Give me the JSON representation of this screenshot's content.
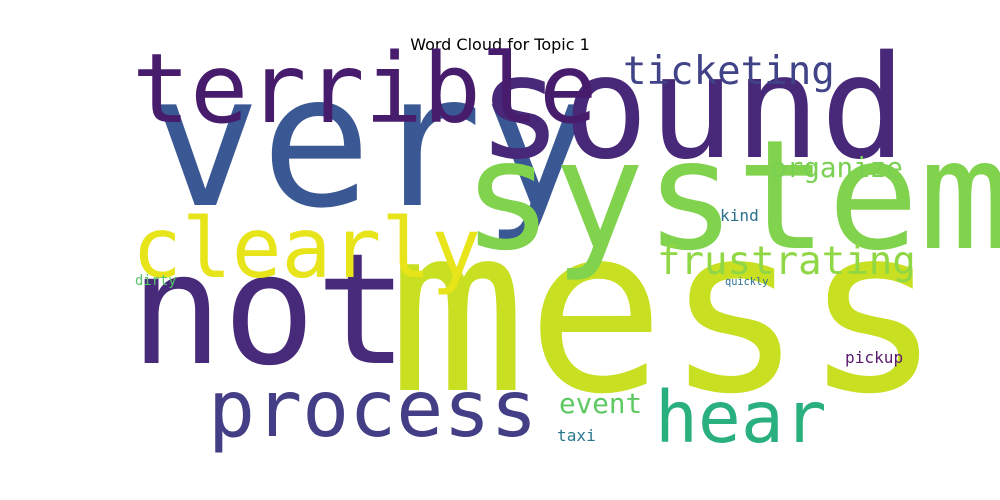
{
  "chart_data": {
    "type": "wordcloud",
    "title": "Word Cloud for Topic 1",
    "words": [
      {
        "text": "mess",
        "weight": 1.0,
        "color": "#c8df22"
      },
      {
        "text": "very",
        "weight": 0.8,
        "color": "#3a5893"
      },
      {
        "text": "sound",
        "weight": 0.62,
        "color": "#482878"
      },
      {
        "text": "system",
        "weight": 0.66,
        "color": "#81d34d"
      },
      {
        "text": "not",
        "weight": 0.67,
        "color": "#472a7a"
      },
      {
        "text": "terrible",
        "weight": 0.42,
        "color": "#471c6d"
      },
      {
        "text": "clearly",
        "weight": 0.36,
        "color": "#e7e419"
      },
      {
        "text": "process",
        "weight": 0.34,
        "color": "#433e85"
      },
      {
        "text": "hear",
        "weight": 0.31,
        "color": "#2ab07f"
      },
      {
        "text": "ticketing",
        "weight": 0.17,
        "color": "#404387"
      },
      {
        "text": "frustrating",
        "weight": 0.17,
        "color": "#8fd744"
      },
      {
        "text": "organize",
        "weight": 0.12,
        "color": "#7ad151"
      },
      {
        "text": "event",
        "weight": 0.12,
        "color": "#5ec962"
      },
      {
        "text": "kind",
        "weight": 0.07,
        "color": "#2c728e"
      },
      {
        "text": "pickup",
        "weight": 0.07,
        "color": "#5b1a6e"
      },
      {
        "text": "taxi",
        "weight": 0.07,
        "color": "#2a788e"
      },
      {
        "text": "dirty",
        "weight": 0.06,
        "color": "#54c568"
      },
      {
        "text": "quickly",
        "weight": 0.045,
        "color": "#2d718e"
      }
    ]
  }
}
